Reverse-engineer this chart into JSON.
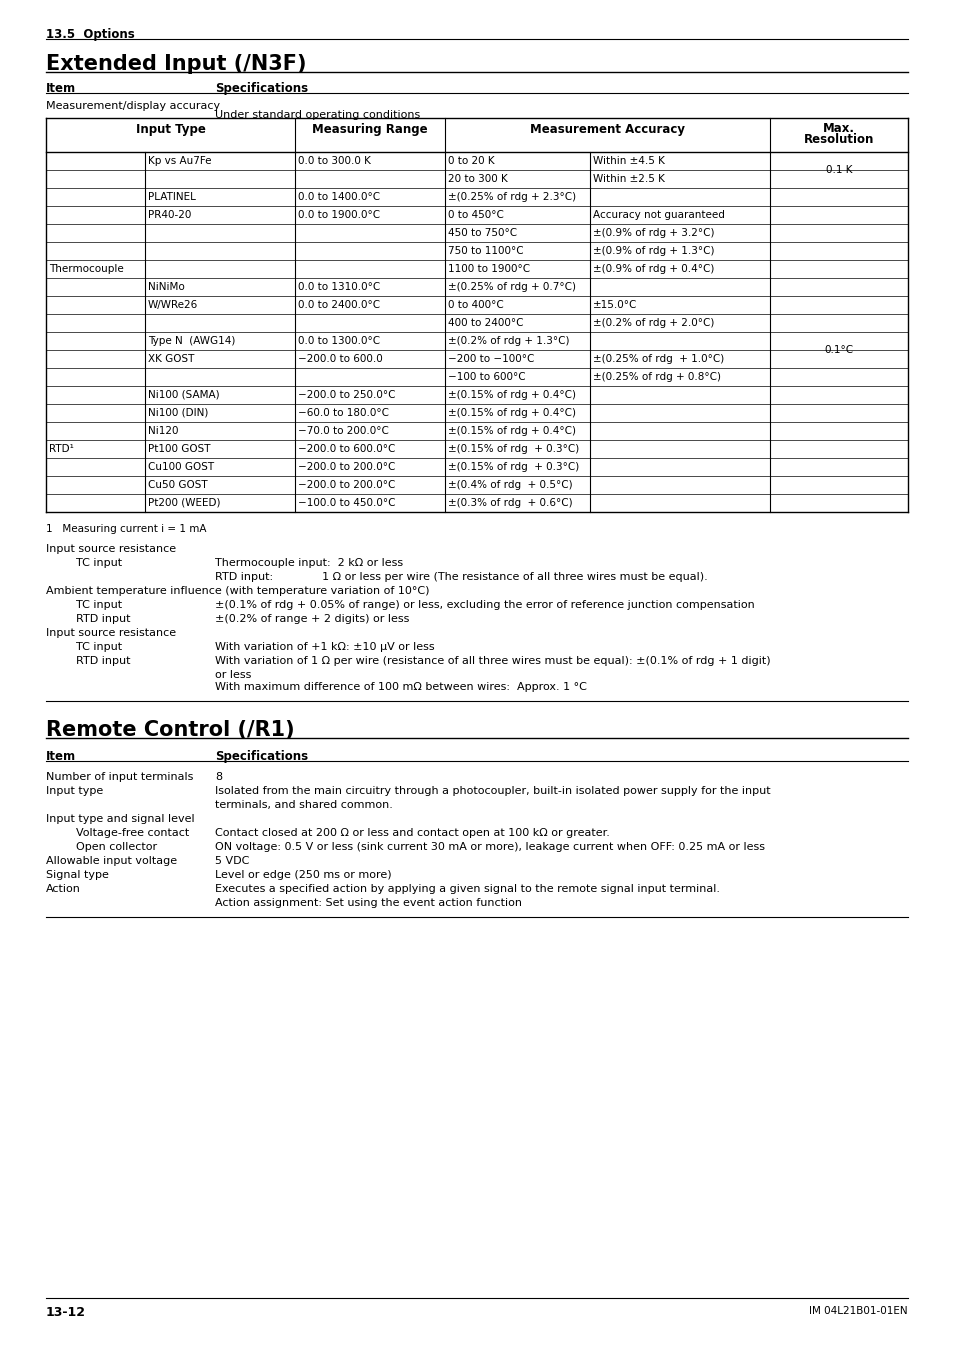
{
  "page_section": "13.5  Options",
  "section1_title": "Extended Input (/N3F)",
  "section1_item_label": "Item",
  "section1_spec_label": "Specifications",
  "meas_display_accuracy": "Measurement/display accuracy",
  "under_standard": "Under standard operating conditions",
  "thermocouple_label": "Thermocouple",
  "rtd_label": "RTD¹",
  "table1_rows": [
    {
      "sub_type": "Kp vs Au7Fe",
      "range": "0.0 to 300.0 K",
      "accuracy_col1": "0 to 20 K",
      "accuracy_col2": "Within ±4.5 K"
    },
    {
      "sub_type": "",
      "range": "",
      "accuracy_col1": "20 to 300 K",
      "accuracy_col2": "Within ±2.5 K"
    },
    {
      "sub_type": "PLATINEL",
      "range": "0.0 to 1400.0°C",
      "accuracy_col1": "±(0.25% of rdg + 2.3°C)",
      "accuracy_col2": ""
    },
    {
      "sub_type": "PR40-20",
      "range": "0.0 to 1900.0°C",
      "accuracy_col1": "0 to 450°C",
      "accuracy_col2": "Accuracy not guaranteed"
    },
    {
      "sub_type": "",
      "range": "",
      "accuracy_col1": "450 to 750°C",
      "accuracy_col2": "±(0.9% of rdg + 3.2°C)"
    },
    {
      "sub_type": "",
      "range": "",
      "accuracy_col1": "750 to 1100°C",
      "accuracy_col2": "±(0.9% of rdg + 1.3°C)"
    },
    {
      "sub_type": "",
      "range": "",
      "accuracy_col1": "1100 to 1900°C",
      "accuracy_col2": "±(0.9% of rdg + 0.4°C)"
    },
    {
      "sub_type": "NiNiMo",
      "range": "0.0 to 1310.0°C",
      "accuracy_col1": "±(0.25% of rdg + 0.7°C)",
      "accuracy_col2": ""
    },
    {
      "sub_type": "W/WRe26",
      "range": "0.0 to 2400.0°C",
      "accuracy_col1": "0 to 400°C",
      "accuracy_col2": "±15.0°C"
    },
    {
      "sub_type": "",
      "range": "",
      "accuracy_col1": "400 to 2400°C",
      "accuracy_col2": "±(0.2% of rdg + 2.0°C)"
    },
    {
      "sub_type": "Type N  (AWG14)",
      "range": "0.0 to 1300.0°C",
      "accuracy_col1": "±(0.2% of rdg + 1.3°C)",
      "accuracy_col2": ""
    },
    {
      "sub_type": "XK GOST",
      "range": "−200.0 to 600.0",
      "accuracy_col1": "−200 to −100°C",
      "accuracy_col2": "±(0.25% of rdg  + 1.0°C)"
    },
    {
      "sub_type": "",
      "range": "",
      "accuracy_col1": "−100 to 600°C",
      "accuracy_col2": "±(0.25% of rdg + 0.8°C)"
    },
    {
      "sub_type": "Ni100 (SAMA)",
      "range": "−200.0 to 250.0°C",
      "accuracy_col1": "±(0.15% of rdg + 0.4°C)",
      "accuracy_col2": ""
    },
    {
      "sub_type": "Ni100 (DIN)",
      "range": "−60.0 to 180.0°C",
      "accuracy_col1": "±(0.15% of rdg + 0.4°C)",
      "accuracy_col2": ""
    },
    {
      "sub_type": "Ni120",
      "range": "−70.0 to 200.0°C",
      "accuracy_col1": "±(0.15% of rdg + 0.4°C)",
      "accuracy_col2": ""
    },
    {
      "sub_type": "Pt100 GOST",
      "range": "−200.0 to 600.0°C",
      "accuracy_col1": "±(0.15% of rdg  + 0.3°C)",
      "accuracy_col2": ""
    },
    {
      "sub_type": "Cu100 GOST",
      "range": "−200.0 to 200.0°C",
      "accuracy_col1": "±(0.15% of rdg  + 0.3°C)",
      "accuracy_col2": ""
    },
    {
      "sub_type": "Cu50 GOST",
      "range": "−200.0 to 200.0°C",
      "accuracy_col1": "±(0.4% of rdg  + 0.5°C)",
      "accuracy_col2": ""
    },
    {
      "sub_type": "Pt200 (WEED)",
      "range": "−100.0 to 450.0°C",
      "accuracy_col1": "±(0.3% of rdg  + 0.6°C)",
      "accuracy_col2": ""
    }
  ],
  "tc_rows": [
    0,
    12
  ],
  "rtd_rows": [
    13,
    19
  ],
  "footnote1": "1   Measuring current i = 1 mA",
  "spec_items": [
    {
      "label": "Input source resistance",
      "indent": 0,
      "value": "",
      "bold_label": false
    },
    {
      "label": "TC input",
      "indent": 1,
      "value": "Thermocouple input:  2 kΩ or less",
      "bold_label": false
    },
    {
      "label": "",
      "indent": 0,
      "value": "RTD input:              1 Ω or less per wire (The resistance of all three wires must be equal).",
      "bold_label": false
    },
    {
      "label": "Ambient temperature influence (with temperature variation of 10°C)",
      "indent": 0,
      "value": "",
      "bold_label": false
    },
    {
      "label": "TC input",
      "indent": 1,
      "value": "±(0.1% of rdg + 0.05% of range) or less, excluding the error of reference junction compensation",
      "bold_label": false
    },
    {
      "label": "RTD input",
      "indent": 1,
      "value": "±(0.2% of range + 2 digits) or less",
      "bold_label": false
    },
    {
      "label": "Input source resistance",
      "indent": 0,
      "value": "",
      "bold_label": false
    },
    {
      "label": "TC input",
      "indent": 1,
      "value": "With variation of +1 kΩ: ±10 μV or less",
      "bold_label": false
    },
    {
      "label": "RTD input",
      "indent": 1,
      "value": "With variation of 1 Ω per wire (resistance of all three wires must be equal): ±(0.1% of rdg + 1 digit)",
      "bold_label": false
    },
    {
      "label": "",
      "indent": 2,
      "value": "or less",
      "bold_label": false
    },
    {
      "label": "",
      "indent": 1,
      "value": "With maximum difference of 100 mΩ between wires:  Approx. 1 °C",
      "bold_label": false
    }
  ],
  "section2_title": "Remote Control (/R1)",
  "section2_item_label": "Item",
  "section2_spec_label": "Specifications",
  "rc_items": [
    {
      "label": "Number of input terminals",
      "indent": 0,
      "value": "8"
    },
    {
      "label": "Input type",
      "indent": 0,
      "value": "Isolated from the main circuitry through a photocoupler, built-in isolated power supply for the input\nterminals, and shared common."
    },
    {
      "label": "Input type and signal level",
      "indent": 0,
      "value": ""
    },
    {
      "label": "Voltage-free contact",
      "indent": 1,
      "value": "Contact closed at 200 Ω or less and contact open at 100 kΩ or greater."
    },
    {
      "label": "Open collector",
      "indent": 1,
      "value": "ON voltage: 0.5 V or less (sink current 30 mA or more), leakage current when OFF: 0.25 mA or less"
    },
    {
      "label": "Allowable input voltage",
      "indent": 0,
      "value": "5 VDC"
    },
    {
      "label": "Signal type",
      "indent": 0,
      "value": "Level or edge (250 ms or more)"
    },
    {
      "label": "Action",
      "indent": 0,
      "value": "Executes a specified action by applying a given signal to the remote signal input terminal.\nAction assignment: Set using the event action function"
    }
  ],
  "footer_left": "13-12",
  "footer_right": "IM 04L21B01-01EN"
}
